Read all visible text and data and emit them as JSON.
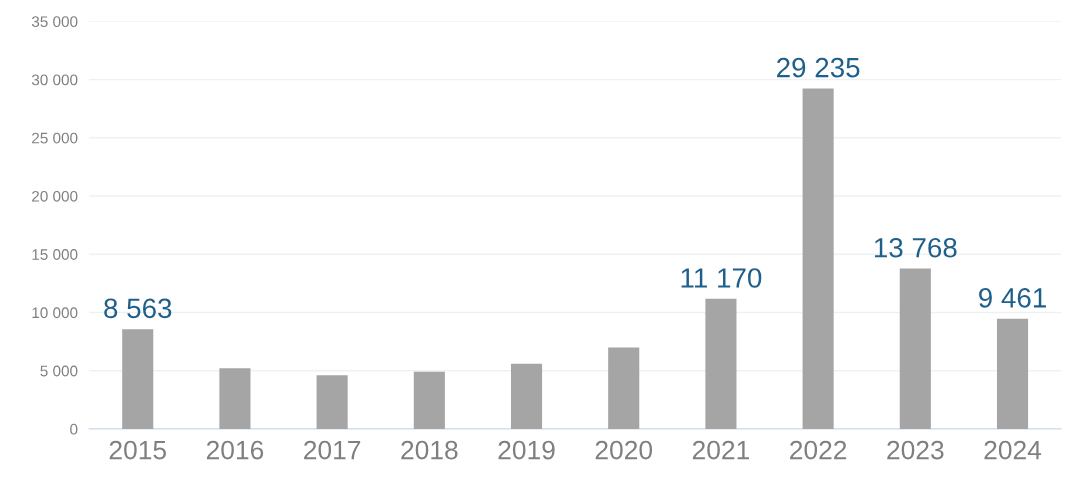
{
  "chart_data": {
    "type": "bar",
    "categories": [
      "2015",
      "2016",
      "2017",
      "2018",
      "2019",
      "2020",
      "2021",
      "2022",
      "2023",
      "2024"
    ],
    "values": [
      8563,
      5200,
      4600,
      4900,
      5600,
      7000,
      11170,
      29235,
      13768,
      9461
    ],
    "value_labels": [
      "8 563",
      null,
      null,
      null,
      null,
      null,
      "11 170",
      "29 235",
      "13 768",
      "9 461"
    ],
    "color": "#a5a5a5",
    "ylim": [
      0,
      35000
    ],
    "yticks": [
      {
        "value": 0,
        "label": "0"
      },
      {
        "value": 5000,
        "label": "5 000"
      },
      {
        "value": 10000,
        "label": "10 000"
      },
      {
        "value": 15000,
        "label": "15 000"
      },
      {
        "value": 20000,
        "label": "20 000"
      },
      {
        "value": 25000,
        "label": "25 000"
      },
      {
        "value": 30000,
        "label": "30 000"
      },
      {
        "value": 35000,
        "label": "35 000"
      }
    ],
    "grid": "y"
  }
}
